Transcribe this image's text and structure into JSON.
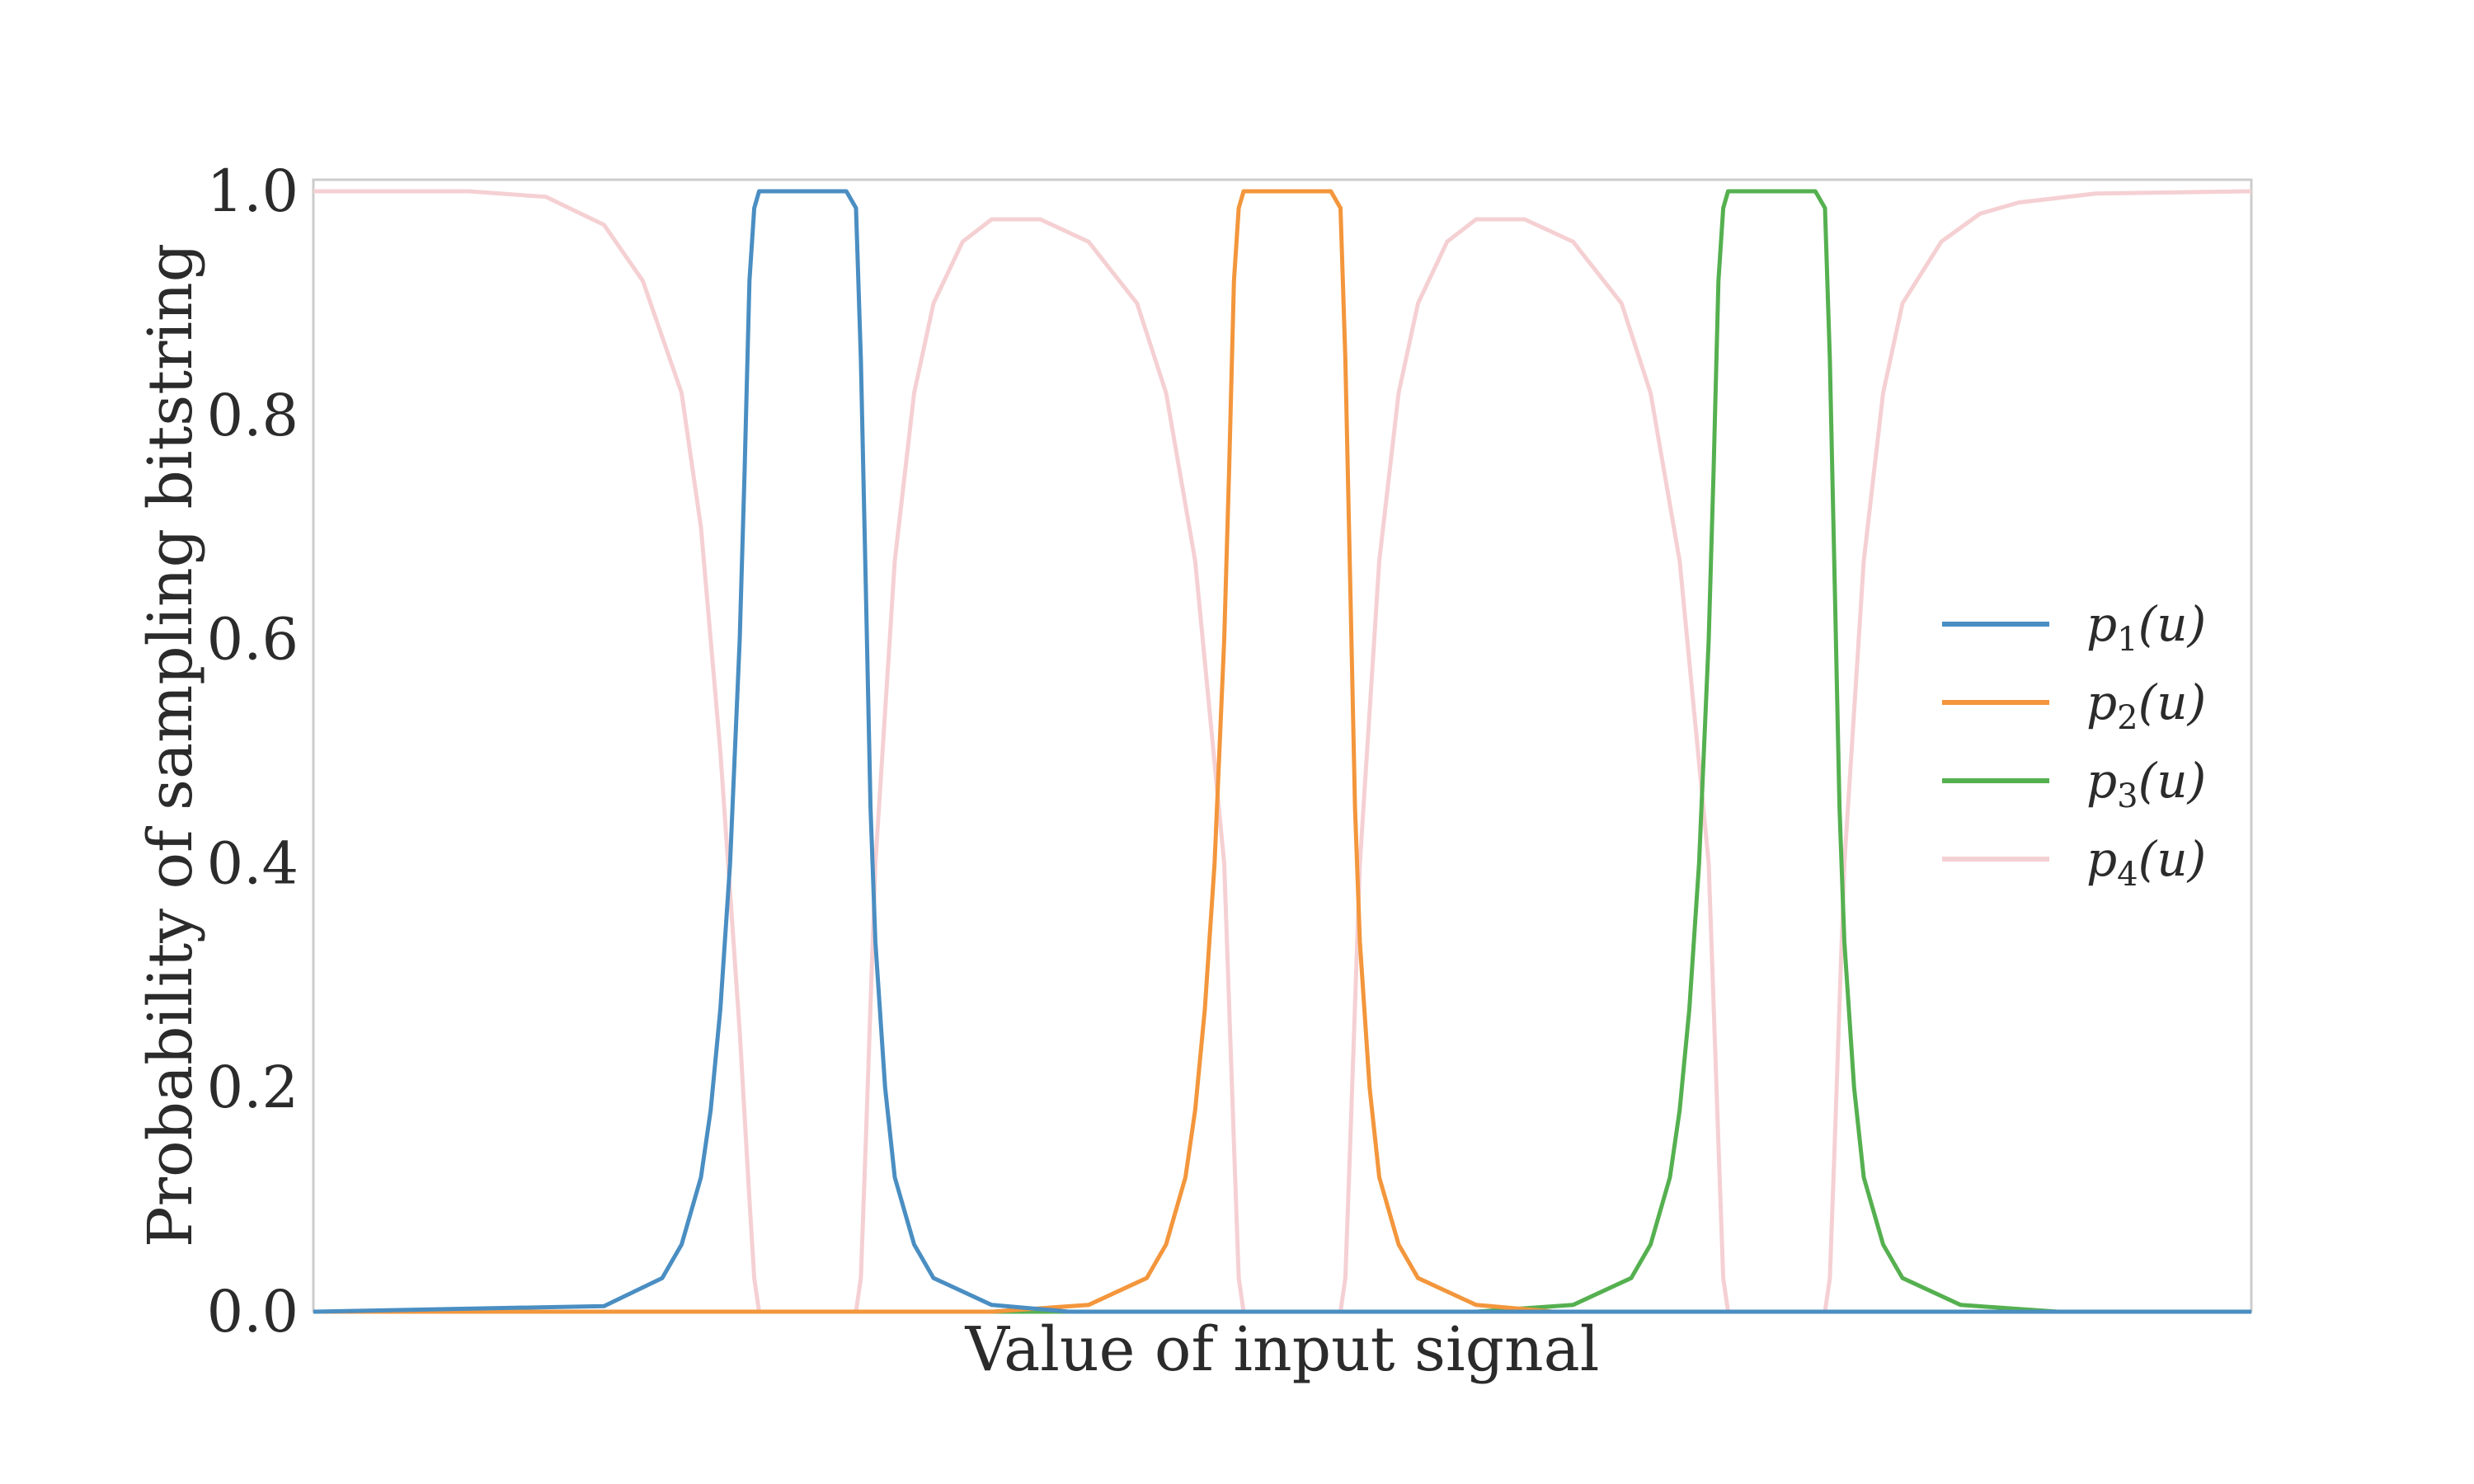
{
  "chart_data": {
    "type": "line",
    "title": "",
    "xlabel": "Value of input signal",
    "ylabel": "Probability of sampling bitstring",
    "xlim": [
      0,
      1
    ],
    "ylim": [
      0,
      1.0
    ],
    "y_ticks": [
      "0.0",
      "0.2",
      "0.4",
      "0.6",
      "0.8",
      "1.0"
    ],
    "x_ticks": [],
    "grid": false,
    "legend_position": "right",
    "series": [
      {
        "name": "p1(u)",
        "name_base": "p",
        "name_sub": "1",
        "name_arg": "(u)",
        "color": "#4a8ec2",
        "x": [
          0.0,
          0.15,
          0.18,
          0.19,
          0.2,
          0.205,
          0.21,
          0.215,
          0.22,
          0.2225,
          0.225,
          0.2275,
          0.23,
          0.24,
          0.25,
          0.26,
          0.27,
          0.275,
          0.28,
          0.2825,
          0.285,
          0.2875,
          0.29,
          0.295,
          0.3,
          0.31,
          0.32,
          0.35,
          0.39,
          0.45,
          1.0
        ],
        "values": [
          0.0,
          0.005,
          0.03,
          0.06,
          0.12,
          0.18,
          0.27,
          0.4,
          0.6,
          0.75,
          0.92,
          0.985,
          1.0,
          1.0,
          1.0,
          1.0,
          1.0,
          1.0,
          0.985,
          0.85,
          0.65,
          0.45,
          0.33,
          0.2,
          0.12,
          0.06,
          0.03,
          0.006,
          0.0,
          0.0,
          0.0
        ]
      },
      {
        "name": "p2(u)",
        "name_base": "p",
        "name_sub": "2",
        "name_arg": "(u)",
        "color": "#f3963c",
        "x": [
          0.0,
          0.35,
          0.4,
          0.43,
          0.44,
          0.45,
          0.455,
          0.46,
          0.465,
          0.47,
          0.4725,
          0.475,
          0.4775,
          0.48,
          0.49,
          0.5,
          0.51,
          0.52,
          0.525,
          0.53,
          0.5325,
          0.535,
          0.5375,
          0.54,
          0.545,
          0.55,
          0.56,
          0.57,
          0.6,
          0.64,
          0.7,
          1.0
        ],
        "values": [
          0.0,
          0.0,
          0.006,
          0.03,
          0.06,
          0.12,
          0.18,
          0.27,
          0.4,
          0.6,
          0.75,
          0.92,
          0.985,
          1.0,
          1.0,
          1.0,
          1.0,
          1.0,
          1.0,
          0.985,
          0.85,
          0.65,
          0.45,
          0.33,
          0.2,
          0.12,
          0.06,
          0.03,
          0.006,
          0.0,
          0.0,
          0.0
        ]
      },
      {
        "name": "p3(u)",
        "name_base": "p",
        "name_sub": "3",
        "name_arg": "(u)",
        "color": "#55b050",
        "x": [
          0.0,
          0.6,
          0.65,
          0.68,
          0.69,
          0.7,
          0.705,
          0.71,
          0.715,
          0.72,
          0.7225,
          0.725,
          0.7275,
          0.73,
          0.74,
          0.75,
          0.76,
          0.77,
          0.775,
          0.78,
          0.7825,
          0.785,
          0.7875,
          0.79,
          0.795,
          0.8,
          0.81,
          0.82,
          0.85,
          0.9,
          1.0
        ],
        "values": [
          0.0,
          0.0,
          0.006,
          0.03,
          0.06,
          0.12,
          0.18,
          0.27,
          0.4,
          0.6,
          0.75,
          0.92,
          0.985,
          1.0,
          1.0,
          1.0,
          1.0,
          1.0,
          1.0,
          0.985,
          0.85,
          0.65,
          0.45,
          0.33,
          0.2,
          0.12,
          0.06,
          0.03,
          0.006,
          0.0,
          0.0
        ]
      },
      {
        "name": "p4(u)",
        "name_base": "p",
        "name_sub": "4",
        "name_arg": "(u)",
        "color": "#f5d0d3",
        "x": [
          0.0,
          0.08,
          0.12,
          0.15,
          0.17,
          0.19,
          0.2,
          0.21,
          0.22,
          0.225,
          0.2275,
          0.23,
          0.24,
          0.25,
          0.26,
          0.27,
          0.28,
          0.2825,
          0.285,
          0.29,
          0.3,
          0.31,
          0.32,
          0.335,
          0.35,
          0.375,
          0.4,
          0.425,
          0.44,
          0.455,
          0.47,
          0.475,
          0.4775,
          0.48,
          0.49,
          0.5,
          0.51,
          0.52,
          0.53,
          0.5325,
          0.535,
          0.54,
          0.55,
          0.56,
          0.57,
          0.585,
          0.6,
          0.625,
          0.65,
          0.675,
          0.69,
          0.705,
          0.72,
          0.725,
          0.7275,
          0.73,
          0.74,
          0.75,
          0.76,
          0.77,
          0.78,
          0.7825,
          0.785,
          0.79,
          0.8,
          0.81,
          0.82,
          0.84,
          0.86,
          0.88,
          0.92,
          1.0
        ],
        "values": [
          1.0,
          1.0,
          0.995,
          0.97,
          0.92,
          0.82,
          0.7,
          0.5,
          0.25,
          0.1,
          0.03,
          0.0,
          0.0,
          0.0,
          0.0,
          0.0,
          0.0,
          0.03,
          0.15,
          0.4,
          0.67,
          0.82,
          0.9,
          0.955,
          0.975,
          0.975,
          0.955,
          0.9,
          0.82,
          0.67,
          0.4,
          0.15,
          0.03,
          0.0,
          0.0,
          0.0,
          0.0,
          0.0,
          0.0,
          0.03,
          0.15,
          0.4,
          0.67,
          0.82,
          0.9,
          0.955,
          0.975,
          0.975,
          0.955,
          0.9,
          0.82,
          0.67,
          0.4,
          0.15,
          0.03,
          0.0,
          0.0,
          0.0,
          0.0,
          0.0,
          0.0,
          0.03,
          0.15,
          0.4,
          0.67,
          0.82,
          0.9,
          0.955,
          0.98,
          0.99,
          0.998,
          1.0
        ]
      }
    ]
  }
}
